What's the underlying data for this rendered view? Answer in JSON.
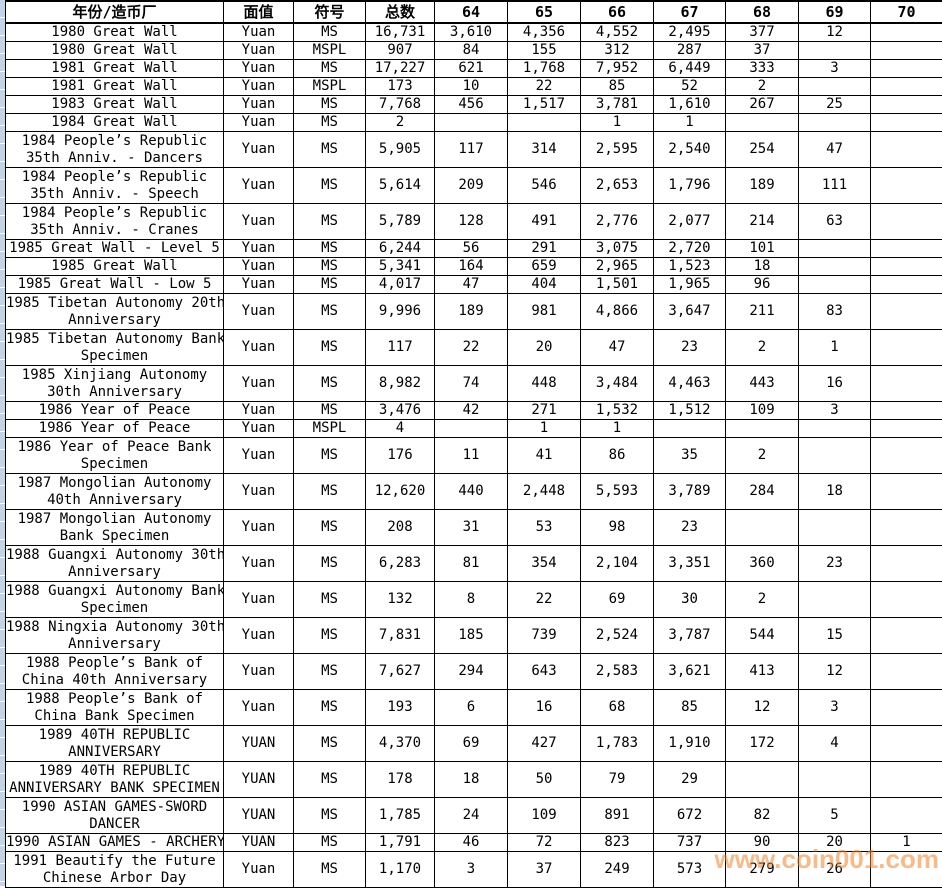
{
  "watermark": {
    "text": "www.coin001.com"
  },
  "colors": {
    "border": "#000000",
    "background": "#ffffff",
    "edge_strip": "#c5d3e6",
    "watermark_orange": "#f28228"
  },
  "table": {
    "columns": [
      "年份/造币厂",
      "面值",
      "符号",
      "总数",
      "64",
      "65",
      "66",
      "67",
      "68",
      "69",
      "70"
    ],
    "rows": [
      {
        "cells": [
          "1980 Great Wall",
          "Yuan",
          "MS",
          "16,731",
          "3,610",
          "4,356",
          "4,552",
          "2,495",
          "377",
          "12",
          ""
        ]
      },
      {
        "cells": [
          "1980 Great Wall",
          "Yuan",
          "MSPL",
          "907",
          "84",
          "155",
          "312",
          "287",
          "37",
          "",
          ""
        ]
      },
      {
        "cells": [
          "1981 Great Wall",
          "Yuan",
          "MS",
          "17,227",
          "621",
          "1,768",
          "7,952",
          "6,449",
          "333",
          "3",
          ""
        ]
      },
      {
        "cells": [
          "1981 Great Wall",
          "Yuan",
          "MSPL",
          "173",
          "10",
          "22",
          "85",
          "52",
          "2",
          "",
          ""
        ]
      },
      {
        "cells": [
          "1983 Great Wall",
          "Yuan",
          "MS",
          "7,768",
          "456",
          "1,517",
          "3,781",
          "1,610",
          "267",
          "25",
          ""
        ]
      },
      {
        "cells": [
          "1984 Great Wall",
          "Yuan",
          "MS",
          "2",
          "",
          "",
          "1",
          "1",
          "",
          "",
          ""
        ]
      },
      {
        "cells": [
          [
            "1984 People’s Republic",
            "35th Anniv. - Dancers"
          ],
          "Yuan",
          "MS",
          "5,905",
          "117",
          "314",
          "2,595",
          "2,540",
          "254",
          "47",
          ""
        ]
      },
      {
        "cells": [
          [
            "1984 People’s Republic",
            "35th Anniv. - Speech"
          ],
          "Yuan",
          "MS",
          "5,614",
          "209",
          "546",
          "2,653",
          "1,796",
          "189",
          "111",
          ""
        ]
      },
      {
        "cells": [
          [
            "1984 People’s Republic",
            "35th Anniv. - Cranes"
          ],
          "Yuan",
          "MS",
          "5,789",
          "128",
          "491",
          "2,776",
          "2,077",
          "214",
          "63",
          ""
        ]
      },
      {
        "cells": [
          "1985 Great Wall - Level 5",
          "Yuan",
          "MS",
          "6,244",
          "56",
          "291",
          "3,075",
          "2,720",
          "101",
          "",
          ""
        ]
      },
      {
        "cells": [
          "1985 Great Wall",
          "Yuan",
          "MS",
          "5,341",
          "164",
          "659",
          "2,965",
          "1,523",
          "18",
          "",
          ""
        ]
      },
      {
        "cells": [
          "1985 Great Wall - Low 5",
          "Yuan",
          "MS",
          "4,017",
          "47",
          "404",
          "1,501",
          "1,965",
          "96",
          "",
          ""
        ]
      },
      {
        "cells": [
          [
            "1985 Tibetan Autonomy 20th",
            "Anniversary"
          ],
          "Yuan",
          "MS",
          "9,996",
          "189",
          "981",
          "4,866",
          "3,647",
          "211",
          "83",
          ""
        ]
      },
      {
        "cells": [
          [
            "1985 Tibetan Autonomy Bank",
            "Specimen"
          ],
          "Yuan",
          "MS",
          "117",
          "22",
          "20",
          "47",
          "23",
          "2",
          "1",
          ""
        ]
      },
      {
        "cells": [
          [
            "1985 Xinjiang Autonomy",
            "30th Anniversary"
          ],
          "Yuan",
          "MS",
          "8,982",
          "74",
          "448",
          "3,484",
          "4,463",
          "443",
          "16",
          ""
        ]
      },
      {
        "cells": [
          "1986 Year of Peace",
          "Yuan",
          "MS",
          "3,476",
          "42",
          "271",
          "1,532",
          "1,512",
          "109",
          "3",
          ""
        ]
      },
      {
        "cells": [
          "1986 Year of Peace",
          "Yuan",
          "MSPL",
          "4",
          "",
          "1",
          "1",
          "",
          "",
          "",
          ""
        ]
      },
      {
        "cells": [
          [
            "1986 Year of Peace Bank",
            "Specimen"
          ],
          "Yuan",
          "MS",
          "176",
          "11",
          "41",
          "86",
          "35",
          "2",
          "",
          ""
        ]
      },
      {
        "cells": [
          [
            "1987 Mongolian Autonomy",
            "40th Anniversary"
          ],
          "Yuan",
          "MS",
          "12,620",
          "440",
          "2,448",
          "5,593",
          "3,789",
          "284",
          "18",
          ""
        ]
      },
      {
        "cells": [
          [
            "1987 Mongolian Autonomy",
            "Bank Specimen"
          ],
          "Yuan",
          "MS",
          "208",
          "31",
          "53",
          "98",
          "23",
          "",
          "",
          ""
        ]
      },
      {
        "cells": [
          [
            "1988 Guangxi Autonomy 30th",
            "Anniversary"
          ],
          "Yuan",
          "MS",
          "6,283",
          "81",
          "354",
          "2,104",
          "3,351",
          "360",
          "23",
          ""
        ]
      },
      {
        "cells": [
          [
            "1988 Guangxi Autonomy Bank",
            "Specimen"
          ],
          "Yuan",
          "MS",
          "132",
          "8",
          "22",
          "69",
          "30",
          "2",
          "",
          ""
        ]
      },
      {
        "cells": [
          [
            "1988 Ningxia Autonomy 30th",
            "Anniversary"
          ],
          "Yuan",
          "MS",
          "7,831",
          "185",
          "739",
          "2,524",
          "3,787",
          "544",
          "15",
          ""
        ]
      },
      {
        "cells": [
          [
            "1988 People’s Bank of",
            "China 40th Anniversary"
          ],
          "Yuan",
          "MS",
          "7,627",
          "294",
          "643",
          "2,583",
          "3,621",
          "413",
          "12",
          ""
        ]
      },
      {
        "cells": [
          [
            "1988 People’s Bank of",
            "China Bank Specimen"
          ],
          "Yuan",
          "MS",
          "193",
          "6",
          "16",
          "68",
          "85",
          "12",
          "3",
          ""
        ]
      },
      {
        "cells": [
          [
            "1989 40TH REPUBLIC",
            "ANNIVERSARY"
          ],
          "YUAN",
          "MS",
          "4,370",
          "69",
          "427",
          "1,783",
          "1,910",
          "172",
          "4",
          ""
        ]
      },
      {
        "cells": [
          [
            "1989 40TH REPUBLIC",
            "ANNIVERSARY BANK SPECIMEN"
          ],
          "YUAN",
          "MS",
          "178",
          "18",
          "50",
          "79",
          "29",
          "",
          "",
          ""
        ]
      },
      {
        "cells": [
          [
            "1990 ASIAN GAMES-SWORD",
            "DANCER"
          ],
          "YUAN",
          "MS",
          "1,785",
          "24",
          "109",
          "891",
          "672",
          "82",
          "5",
          ""
        ]
      },
      {
        "cells": [
          "1990 ASIAN GAMES - ARCHERY",
          "YUAN",
          "MS",
          "1,791",
          "46",
          "72",
          "823",
          "737",
          "90",
          "20",
          "1"
        ]
      },
      {
        "cells": [
          [
            "1991 Beautify the Future",
            "Chinese Arbor Day"
          ],
          "Yuan",
          "MS",
          "1,170",
          "3",
          "37",
          "249",
          "573",
          "279",
          "26",
          ""
        ]
      }
    ]
  }
}
